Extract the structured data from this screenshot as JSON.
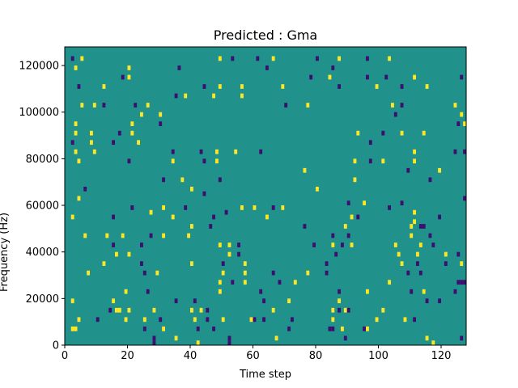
{
  "chart_data": {
    "type": "heatmap",
    "title": "Predicted : Gma",
    "xlabel": "Time step",
    "ylabel": "Frequency (Hz)",
    "xlim": [
      0,
      128
    ],
    "ylim": [
      0,
      128000
    ],
    "x_ticks": [
      0,
      20,
      40,
      60,
      80,
      100,
      120
    ],
    "y_ticks": [
      0,
      20000,
      40000,
      60000,
      80000,
      100000,
      120000
    ],
    "x_tick_labels": [
      "0",
      "20",
      "40",
      "60",
      "80",
      "100",
      "120"
    ],
    "y_tick_labels": [
      "0",
      "20000",
      "40000",
      "60000",
      "80000",
      "100000",
      "120000"
    ],
    "colormap": "viridis",
    "background_value": 0,
    "value_colors": {
      "-1": "#3b0f70",
      "0": "#21918c",
      "1": "#fde725"
    },
    "value_colors_note": "",
    "cells": [
      [
        2,
        123000,
        -1
      ],
      [
        5,
        123000,
        1
      ],
      [
        49,
        123000,
        1
      ],
      [
        53,
        123000,
        -1
      ],
      [
        61,
        123000,
        -1
      ],
      [
        66,
        123000,
        1
      ],
      [
        80,
        123000,
        -1
      ],
      [
        87,
        123000,
        1
      ],
      [
        96,
        123000,
        -1
      ],
      [
        103,
        123000,
        1
      ],
      [
        3,
        119000,
        1
      ],
      [
        20,
        119000,
        1
      ],
      [
        36,
        119000,
        -1
      ],
      [
        64,
        119000,
        -1
      ],
      [
        85,
        119000,
        -1
      ],
      [
        18,
        115000,
        -1
      ],
      [
        20,
        115000,
        1
      ],
      [
        78,
        115000,
        -1
      ],
      [
        84,
        115000,
        1
      ],
      [
        96,
        115000,
        -1
      ],
      [
        102,
        115000,
        -1
      ],
      [
        111,
        115000,
        1
      ],
      [
        126,
        115000,
        -1
      ],
      [
        4,
        111000,
        -1
      ],
      [
        12,
        111000,
        1
      ],
      [
        44,
        111000,
        -1
      ],
      [
        49,
        111000,
        1
      ],
      [
        56,
        111000,
        1
      ],
      [
        69,
        111000,
        1
      ],
      [
        87,
        111000,
        -1
      ],
      [
        99,
        111000,
        1
      ],
      [
        107,
        111000,
        -1
      ],
      [
        115,
        111000,
        1
      ],
      [
        35,
        107000,
        -1
      ],
      [
        38,
        107000,
        1
      ],
      [
        47,
        107000,
        1
      ],
      [
        56,
        107000,
        1
      ],
      [
        5,
        103000,
        1
      ],
      [
        9,
        103000,
        1
      ],
      [
        12,
        103000,
        -1
      ],
      [
        22,
        103000,
        -1
      ],
      [
        26,
        103000,
        1
      ],
      [
        70,
        103000,
        -1
      ],
      [
        77,
        103000,
        1
      ],
      [
        104,
        103000,
        1
      ],
      [
        107,
        103000,
        -1
      ],
      [
        124,
        103000,
        1
      ],
      [
        24,
        99000,
        1
      ],
      [
        30,
        99000,
        1
      ],
      [
        105,
        99000,
        -1
      ],
      [
        126,
        99000,
        1
      ],
      [
        3,
        95000,
        1
      ],
      [
        21,
        95000,
        1
      ],
      [
        30,
        95000,
        -1
      ],
      [
        125,
        95000,
        -1
      ],
      [
        127,
        95000,
        1
      ],
      [
        3,
        91000,
        1
      ],
      [
        8,
        91000,
        1
      ],
      [
        17,
        91000,
        -1
      ],
      [
        21,
        91000,
        1
      ],
      [
        93,
        91000,
        1
      ],
      [
        101,
        91000,
        -1
      ],
      [
        107,
        91000,
        1
      ],
      [
        114,
        91000,
        1
      ],
      [
        2,
        87000,
        -1
      ],
      [
        8,
        87000,
        1
      ],
      [
        15,
        87000,
        -1
      ],
      [
        23,
        87000,
        1
      ],
      [
        97,
        87000,
        -1
      ],
      [
        3,
        83000,
        1
      ],
      [
        9,
        83000,
        1
      ],
      [
        34,
        83000,
        -1
      ],
      [
        43,
        83000,
        -1
      ],
      [
        48,
        83000,
        1
      ],
      [
        54,
        83000,
        1
      ],
      [
        62,
        83000,
        -1
      ],
      [
        111,
        83000,
        1
      ],
      [
        124,
        83000,
        -1
      ],
      [
        127,
        83000,
        -1
      ],
      [
        4,
        79000,
        1
      ],
      [
        20,
        79000,
        -1
      ],
      [
        34,
        79000,
        1
      ],
      [
        44,
        79000,
        -1
      ],
      [
        48,
        79000,
        1
      ],
      [
        92,
        79000,
        1
      ],
      [
        97,
        79000,
        -1
      ],
      [
        101,
        79000,
        1
      ],
      [
        111,
        79000,
        1
      ],
      [
        76,
        75000,
        1
      ],
      [
        109,
        75000,
        -1
      ],
      [
        119,
        75000,
        1
      ],
      [
        31,
        71000,
        -1
      ],
      [
        37,
        71000,
        1
      ],
      [
        49,
        71000,
        -1
      ],
      [
        92,
        71000,
        1
      ],
      [
        116,
        71000,
        -1
      ],
      [
        6,
        67000,
        -1
      ],
      [
        4,
        63000,
        1
      ],
      [
        40,
        67000,
        1
      ],
      [
        44,
        65000,
        -1
      ],
      [
        80,
        67000,
        1
      ],
      [
        90,
        61000,
        -1
      ],
      [
        95,
        61000,
        1
      ],
      [
        107,
        61000,
        -1
      ],
      [
        127,
        63000,
        -1
      ],
      [
        21,
        59000,
        -1
      ],
      [
        31,
        59000,
        1
      ],
      [
        38,
        59000,
        -1
      ],
      [
        56,
        59000,
        1
      ],
      [
        60,
        59000,
        1
      ],
      [
        66,
        59000,
        -1
      ],
      [
        69,
        59000,
        1
      ],
      [
        103,
        59000,
        -1
      ],
      [
        111,
        57000,
        1
      ],
      [
        15,
        55000,
        -1
      ],
      [
        27,
        57000,
        1
      ],
      [
        34,
        55000,
        1
      ],
      [
        47,
        55000,
        -1
      ],
      [
        51,
        57000,
        -1
      ],
      [
        64,
        55000,
        1
      ],
      [
        91,
        55000,
        1
      ],
      [
        93,
        55000,
        -1
      ],
      [
        111,
        53000,
        1
      ],
      [
        119,
        55000,
        -1
      ],
      [
        2,
        55000,
        1
      ],
      [
        40,
        51000,
        1
      ],
      [
        46,
        51000,
        -1
      ],
      [
        76,
        51000,
        -1
      ],
      [
        89,
        51000,
        1
      ],
      [
        110,
        51000,
        1
      ],
      [
        113,
        51000,
        -1
      ],
      [
        114,
        51000,
        -1
      ],
      [
        6,
        47000,
        1
      ],
      [
        13,
        47000,
        1
      ],
      [
        18,
        47000,
        1
      ],
      [
        27,
        47000,
        -1
      ],
      [
        31,
        47000,
        1
      ],
      [
        39,
        47000,
        1
      ],
      [
        85,
        47000,
        -1
      ],
      [
        90,
        47000,
        -1
      ],
      [
        110,
        47000,
        1
      ],
      [
        116,
        47000,
        -1
      ],
      [
        15,
        43000,
        -1
      ],
      [
        24,
        43000,
        -1
      ],
      [
        49,
        43000,
        1
      ],
      [
        52,
        43000,
        1
      ],
      [
        55,
        43000,
        -1
      ],
      [
        79,
        43000,
        -1
      ],
      [
        85,
        43000,
        1
      ],
      [
        88,
        43000,
        -1
      ],
      [
        91,
        43000,
        1
      ],
      [
        105,
        43000,
        1
      ],
      [
        113,
        43000,
        1
      ],
      [
        117,
        43000,
        -1
      ],
      [
        16,
        39000,
        1
      ],
      [
        20,
        39000,
        1
      ],
      [
        52,
        39000,
        1
      ],
      [
        55,
        39000,
        -1
      ],
      [
        86,
        39000,
        -1
      ],
      [
        106,
        39000,
        1
      ],
      [
        112,
        39000,
        1
      ],
      [
        121,
        39000,
        1
      ],
      [
        125,
        39000,
        -1
      ],
      [
        12,
        35000,
        1
      ],
      [
        24,
        35000,
        -1
      ],
      [
        40,
        35000,
        1
      ],
      [
        50,
        35000,
        -1
      ],
      [
        57,
        35000,
        1
      ],
      [
        83,
        35000,
        -1
      ],
      [
        107,
        35000,
        1
      ],
      [
        112,
        35000,
        -1
      ],
      [
        121,
        35000,
        -1
      ],
      [
        126,
        35000,
        1
      ],
      [
        7,
        31000,
        1
      ],
      [
        25,
        31000,
        -1
      ],
      [
        29,
        31000,
        1
      ],
      [
        50,
        31000,
        1
      ],
      [
        57,
        31000,
        1
      ],
      [
        66,
        31000,
        -1
      ],
      [
        77,
        31000,
        1
      ],
      [
        83,
        31000,
        -1
      ],
      [
        109,
        31000,
        -1
      ],
      [
        113,
        31000,
        -1
      ],
      [
        49,
        27000,
        1
      ],
      [
        53,
        27000,
        -1
      ],
      [
        57,
        27000,
        1
      ],
      [
        68,
        27000,
        -1
      ],
      [
        73,
        27000,
        1
      ],
      [
        103,
        27000,
        1
      ],
      [
        125,
        27000,
        -1
      ],
      [
        126,
        27000,
        -1
      ],
      [
        127,
        27000,
        -1
      ],
      [
        19,
        23000,
        1
      ],
      [
        26,
        23000,
        -1
      ],
      [
        49,
        23000,
        1
      ],
      [
        62,
        23000,
        -1
      ],
      [
        87,
        23000,
        -1
      ],
      [
        96,
        23000,
        1
      ],
      [
        110,
        23000,
        -1
      ],
      [
        114,
        23000,
        1
      ],
      [
        124,
        23000,
        -1
      ],
      [
        2,
        19000,
        1
      ],
      [
        15,
        19000,
        1
      ],
      [
        35,
        19000,
        -1
      ],
      [
        41,
        19000,
        -1
      ],
      [
        63,
        19000,
        -1
      ],
      [
        71,
        19000,
        1
      ],
      [
        87,
        19000,
        1
      ],
      [
        115,
        19000,
        -1
      ],
      [
        119,
        19000,
        -1
      ],
      [
        14,
        15000,
        -1
      ],
      [
        16,
        15000,
        1
      ],
      [
        17,
        15000,
        1
      ],
      [
        20,
        15000,
        1
      ],
      [
        28,
        15000,
        1
      ],
      [
        40,
        15000,
        1
      ],
      [
        43,
        15000,
        1
      ],
      [
        45,
        15000,
        -1
      ],
      [
        66,
        15000,
        1
      ],
      [
        85,
        15000,
        1
      ],
      [
        87,
        15000,
        -1
      ],
      [
        89,
        15000,
        1
      ],
      [
        90,
        15000,
        -1
      ],
      [
        101,
        15000,
        1
      ],
      [
        4,
        11000,
        1
      ],
      [
        10,
        11000,
        -1
      ],
      [
        19,
        11000,
        1
      ],
      [
        25,
        11000,
        1
      ],
      [
        30,
        11000,
        -1
      ],
      [
        41,
        11000,
        1
      ],
      [
        45,
        11000,
        -1
      ],
      [
        50,
        11000,
        1
      ],
      [
        59,
        11000,
        1
      ],
      [
        60,
        11000,
        -1
      ],
      [
        63,
        11000,
        -1
      ],
      [
        72,
        11000,
        -1
      ],
      [
        85,
        11000,
        1
      ],
      [
        99,
        11000,
        1
      ],
      [
        108,
        11000,
        1
      ],
      [
        111,
        11000,
        -1
      ],
      [
        2,
        7000,
        1
      ],
      [
        3,
        7000,
        1
      ],
      [
        25,
        7000,
        -1
      ],
      [
        31,
        7000,
        1
      ],
      [
        42,
        7000,
        -1
      ],
      [
        47,
        7000,
        -1
      ],
      [
        71,
        7000,
        -1
      ],
      [
        84,
        7000,
        -1
      ],
      [
        85,
        7000,
        -1
      ],
      [
        88,
        7000,
        1
      ],
      [
        95,
        7000,
        -1
      ],
      [
        96,
        7000,
        1
      ],
      [
        28,
        3000,
        -1
      ],
      [
        35,
        3000,
        1
      ],
      [
        52,
        3000,
        -1
      ],
      [
        67,
        3000,
        1
      ],
      [
        89,
        3000,
        -1
      ],
      [
        115,
        3000,
        1
      ],
      [
        126,
        3000,
        -1
      ],
      [
        28,
        1000,
        -1
      ],
      [
        42,
        1000,
        1
      ],
      [
        52,
        1000,
        -1
      ],
      [
        117,
        1000,
        1
      ]
    ]
  }
}
